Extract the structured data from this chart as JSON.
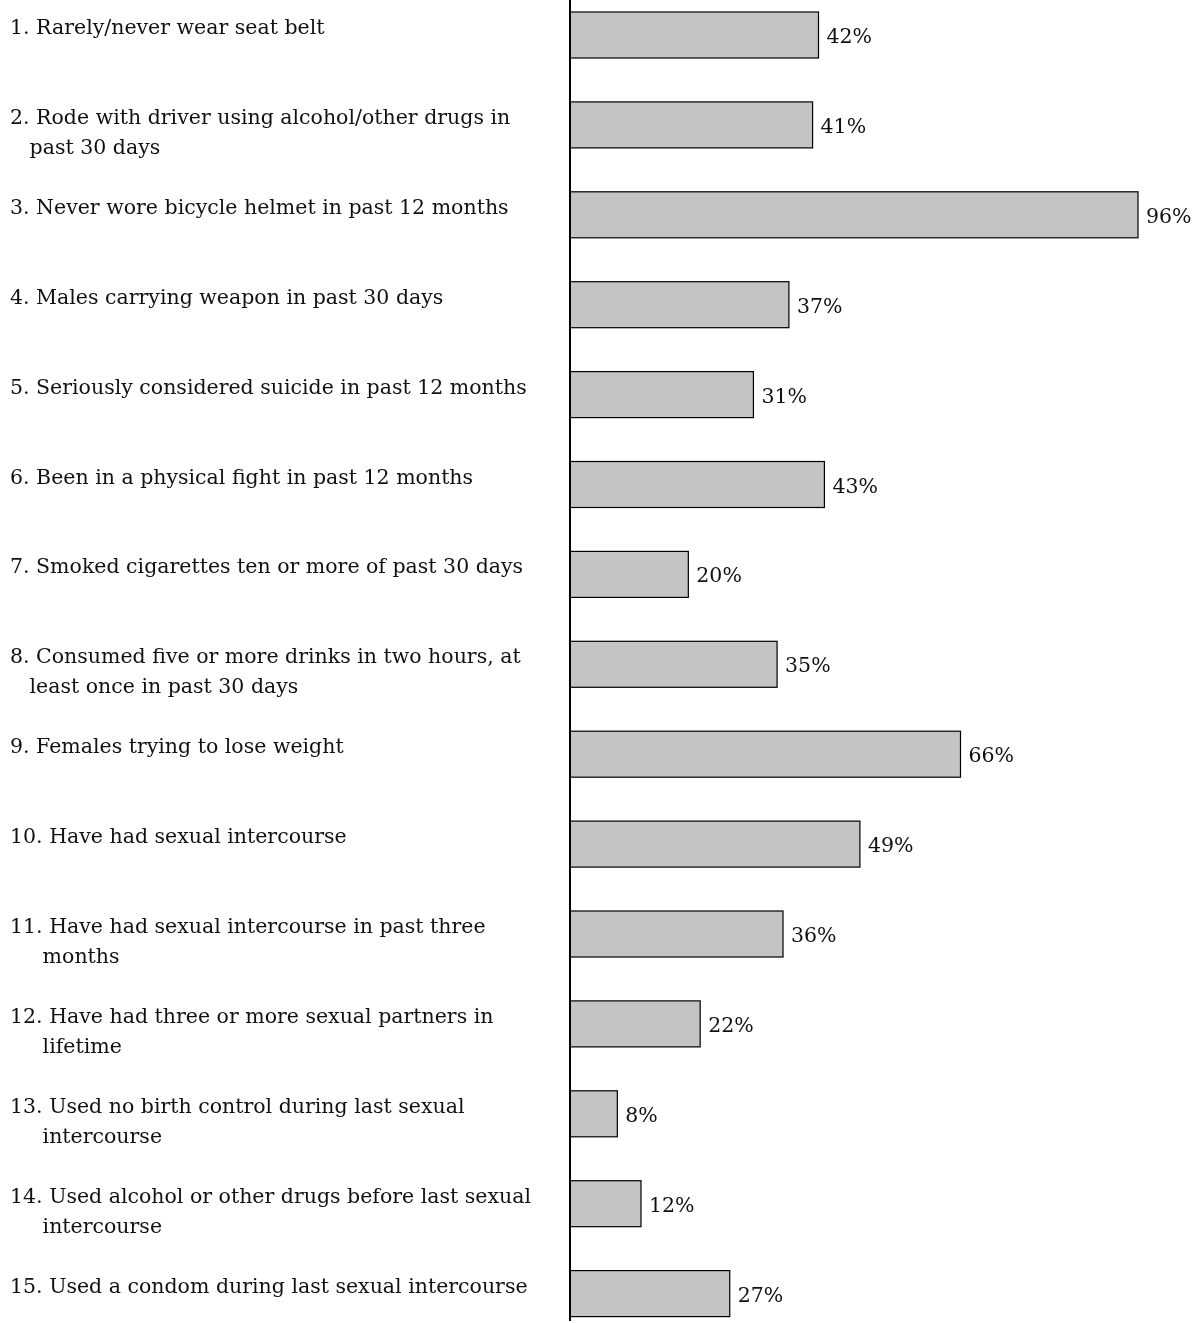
{
  "chart_data": {
    "type": "bar",
    "orientation": "horizontal",
    "color": "#c4c4c4",
    "categories": [
      "1. Rarely/never wear seat belt",
      "2. Rode with driver using alcohol/other drugs in past 30 days",
      "3. Never wore bicycle helmet in past 12 months",
      "4. Males carrying weapon in past 30 days",
      "5. Seriously considered suicide in past 12 months",
      "6. Been in a physical fight in past 12 months",
      "7. Smoked cigarettes ten or more of past 30 days",
      "8. Consumed five or more drinks in two hours, at least once in past 30 days",
      "9. Females trying to lose weight",
      "10. Have had sexual intercourse",
      "11. Have had sexual intercourse in past three months",
      "12. Have had three or more sexual partners in lifetime",
      "13. Used no birth control during last sexual intercourse",
      "14. Used alcohol or other drugs before last sexual intercourse",
      "15. Used a condom during last sexual intercourse"
    ],
    "values": [
      42,
      41,
      96,
      37,
      31,
      43,
      20,
      35,
      66,
      49,
      36,
      22,
      8,
      12,
      27
    ],
    "value_labels": [
      "42%",
      "41%",
      "96%",
      "37%",
      "31%",
      "43%",
      "20%",
      "35%",
      "66%",
      "49%",
      "36%",
      "22%",
      "8%",
      "12%",
      "27%"
    ]
  }
}
